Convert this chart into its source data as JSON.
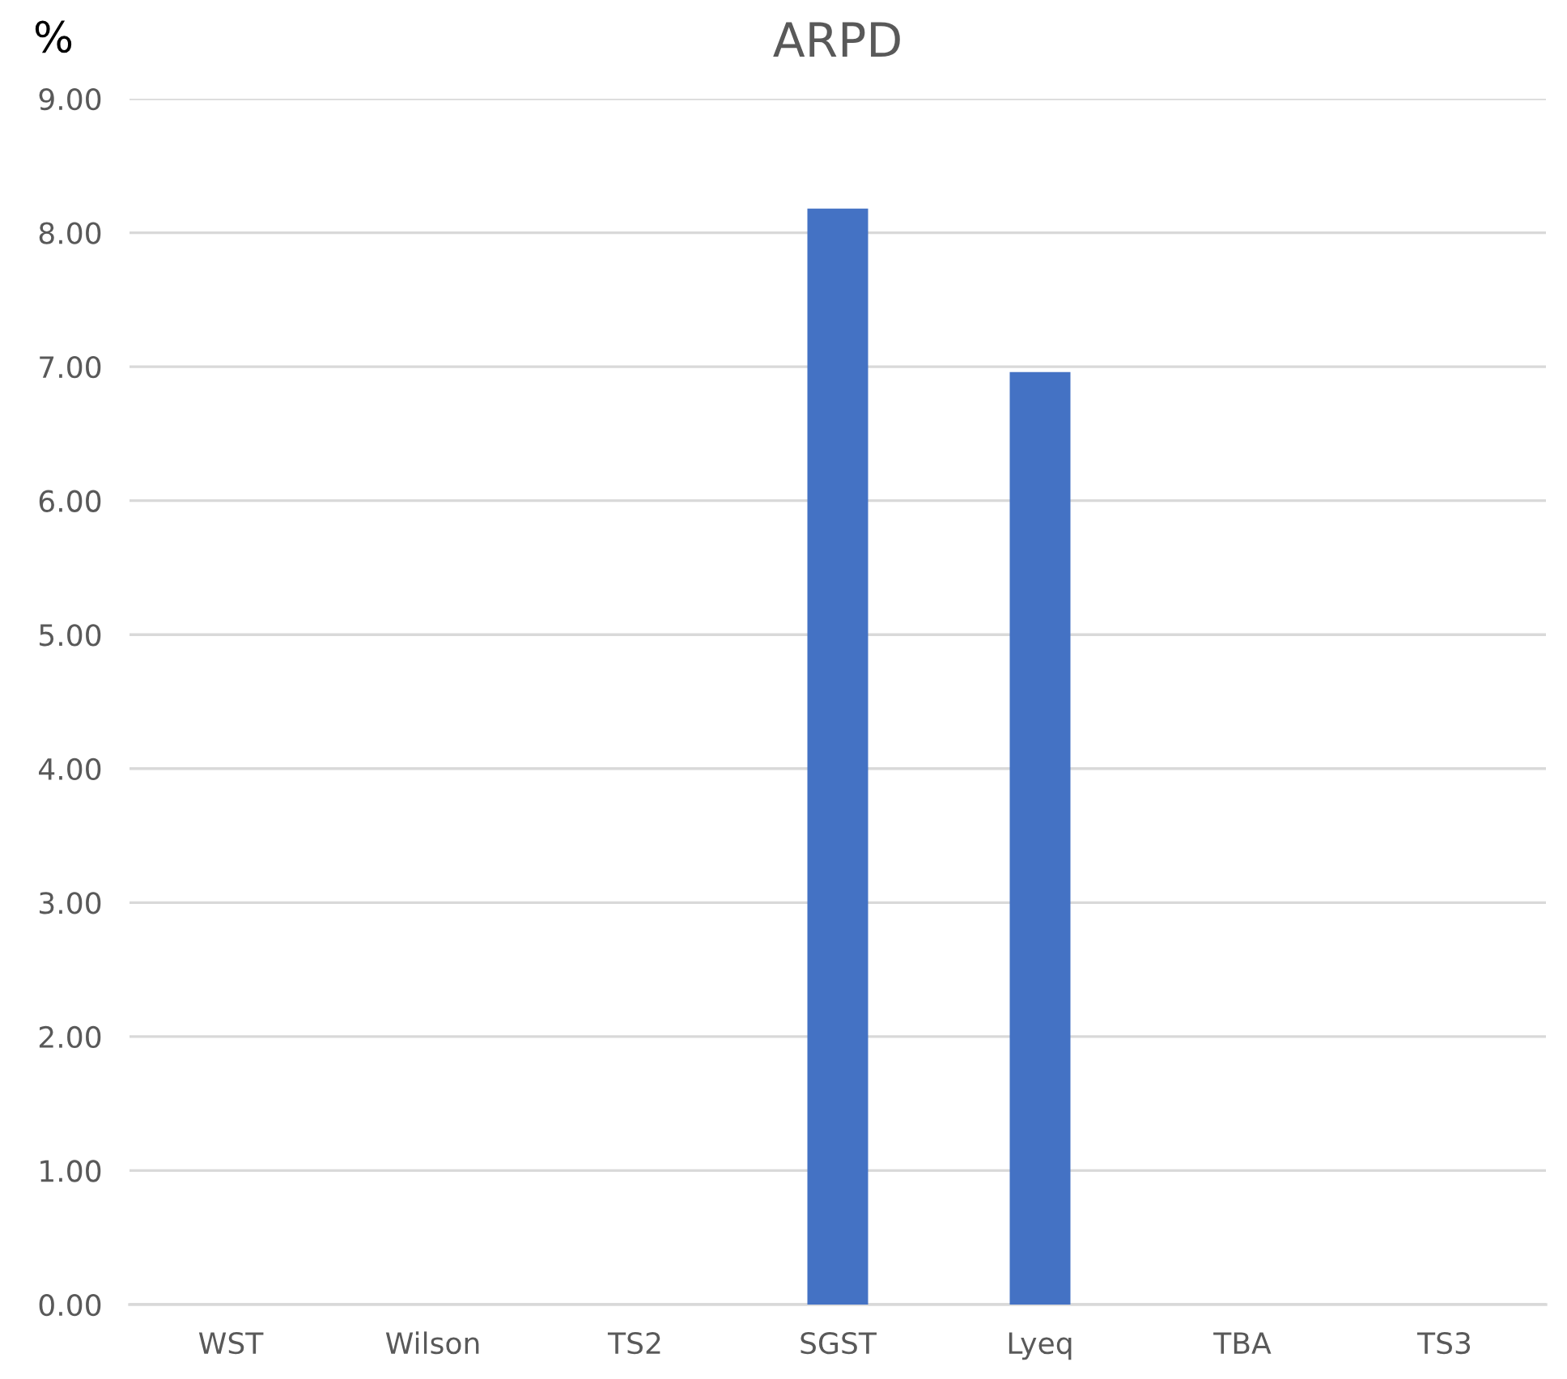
{
  "chart_data": {
    "type": "bar",
    "title": "ARPD",
    "ylabel": "%",
    "categories": [
      "WST",
      "Wilson",
      "TS2",
      "SGST",
      "Lyeq",
      "TBA",
      "TS3"
    ],
    "values": [
      0,
      0,
      0,
      8.18,
      6.96,
      0,
      0
    ],
    "color": "#4472c4",
    "ylim": [
      0,
      9
    ],
    "yticks": [
      {
        "value": 0,
        "label": "0.00"
      },
      {
        "value": 1,
        "label": "1.00"
      },
      {
        "value": 2,
        "label": "2.00"
      },
      {
        "value": 3,
        "label": "3.00"
      },
      {
        "value": 4,
        "label": "4.00"
      },
      {
        "value": 5,
        "label": "5.00"
      },
      {
        "value": 6,
        "label": "6.00"
      },
      {
        "value": 7,
        "label": "7.00"
      },
      {
        "value": 8,
        "label": "8.00"
      },
      {
        "value": 9,
        "label": "9.00"
      }
    ],
    "grid": "y",
    "legend": false
  }
}
